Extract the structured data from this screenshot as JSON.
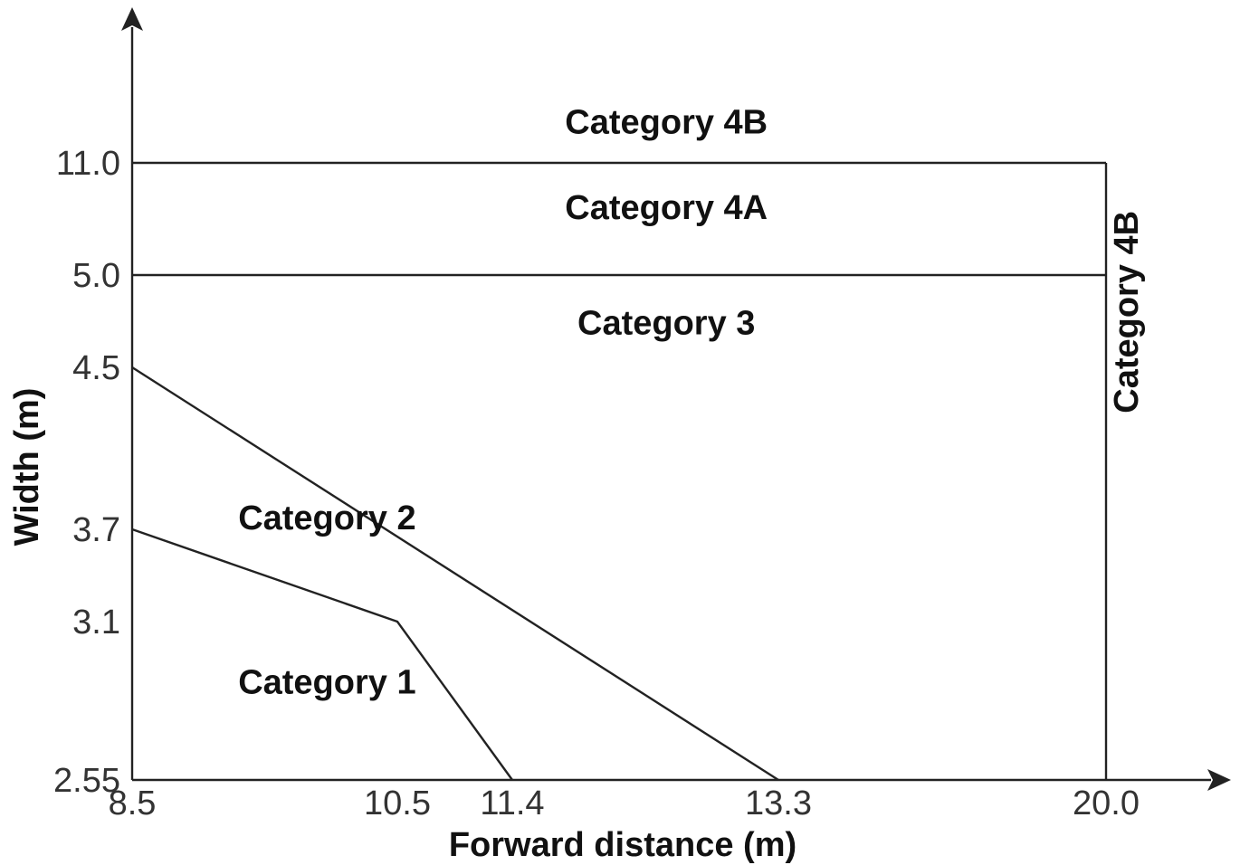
{
  "chart_data": {
    "type": "line",
    "title": "",
    "xlabel": "Forward distance (m)",
    "ylabel": "Width (m)",
    "x_ticks": [
      "8.5",
      "10.5",
      "11.4",
      "13.3",
      "20.0"
    ],
    "y_ticks": [
      "2.55",
      "3.1",
      "3.7",
      "4.5",
      "5.0",
      "11.0"
    ],
    "series": [
      {
        "points": [
          [
            8.5,
            3.7
          ],
          [
            10.5,
            3.1
          ],
          [
            11.4,
            2.55
          ]
        ]
      },
      {
        "points": [
          [
            8.5,
            4.5
          ],
          [
            13.3,
            2.55
          ]
        ]
      },
      {
        "points": [
          [
            8.5,
            5.0
          ],
          [
            20.0,
            5.0
          ]
        ]
      },
      {
        "points": [
          [
            8.5,
            11.0
          ],
          [
            20.0,
            11.0
          ]
        ]
      },
      {
        "points": [
          [
            20.0,
            2.55
          ],
          [
            20.0,
            11.0
          ]
        ]
      }
    ],
    "regions": [
      {
        "label": "Category 1",
        "x": 9.3,
        "y": 2.85
      },
      {
        "label": "Category 2",
        "x": 9.3,
        "y": 3.7
      },
      {
        "label": "Category 3",
        "x": 12.5,
        "y": 4.68
      },
      {
        "label": "Category 4A",
        "x": 12.5,
        "y": 8.0
      },
      {
        "label": "Category 4B",
        "x": 12.5,
        "y": 13.6
      },
      {
        "label": "Category 4B",
        "x": 20.65,
        "y": 4.8,
        "rotated": true
      }
    ],
    "xlim": [
      8.5,
      20.0
    ],
    "grid": false,
    "legend": "none",
    "axis_arrows": true
  }
}
